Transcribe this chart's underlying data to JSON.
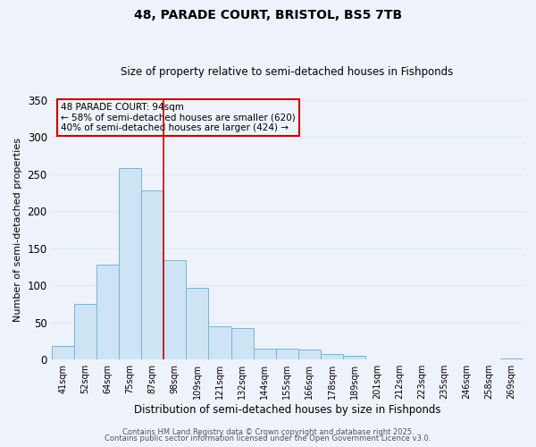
{
  "title": "48, PARADE COURT, BRISTOL, BS5 7TB",
  "subtitle": "Size of property relative to semi-detached houses in Fishponds",
  "xlabel": "Distribution of semi-detached houses by size in Fishponds",
  "ylabel": "Number of semi-detached properties",
  "bin_labels": [
    "41sqm",
    "52sqm",
    "64sqm",
    "75sqm",
    "87sqm",
    "98sqm",
    "109sqm",
    "121sqm",
    "132sqm",
    "144sqm",
    "155sqm",
    "166sqm",
    "178sqm",
    "189sqm",
    "201sqm",
    "212sqm",
    "223sqm",
    "235sqm",
    "246sqm",
    "258sqm",
    "269sqm"
  ],
  "bar_heights": [
    18,
    75,
    128,
    258,
    228,
    134,
    97,
    45,
    42,
    15,
    15,
    13,
    8,
    5,
    0,
    0,
    0,
    0,
    0,
    0,
    1
  ],
  "bar_color": "#cde4f5",
  "bar_edge_color": "#7ab4d4",
  "background_color": "#eef2fb",
  "grid_color": "#dde8f5",
  "vline_x_index": 4.5,
  "vline_color": "#cc0000",
  "annotation_title": "48 PARADE COURT: 94sqm",
  "annotation_line1": "← 58% of semi-detached houses are smaller (620)",
  "annotation_line2": "40% of semi-detached houses are larger (424) →",
  "annotation_box_color": "#cc0000",
  "ylim": [
    0,
    350
  ],
  "yticks": [
    0,
    50,
    100,
    150,
    200,
    250,
    300,
    350
  ],
  "footer1": "Contains HM Land Registry data © Crown copyright and database right 2025.",
  "footer2": "Contains public sector information licensed under the Open Government Licence v3.0."
}
